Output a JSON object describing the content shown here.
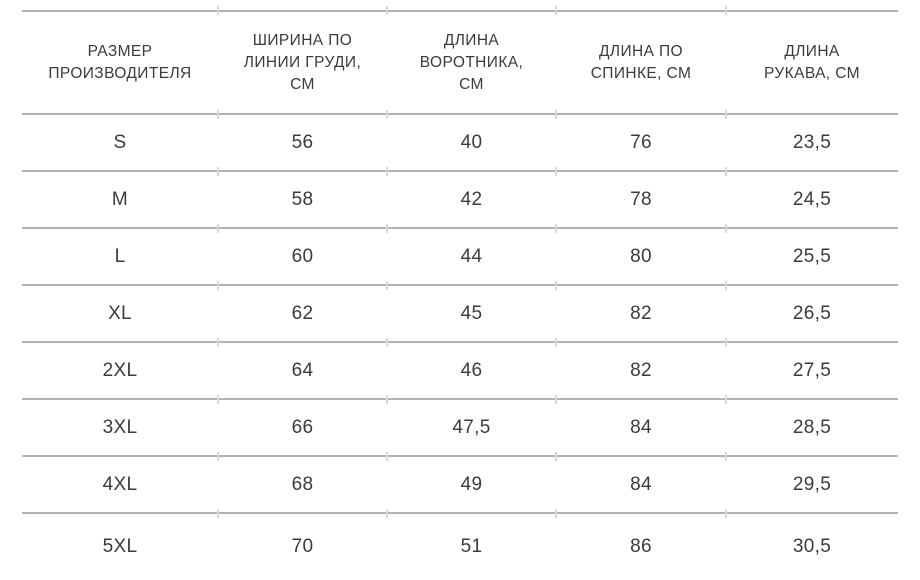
{
  "chart_data": {
    "type": "table",
    "title": "",
    "columns": [
      "РАЗМЕР ПРОИЗВОДИТЕЛЯ",
      "ШИРИНА ПО ЛИНИИ ГРУДИ, СМ",
      "ДЛИНА ВОРОТНИКА, СМ",
      "ДЛИНА ПО СПИНКЕ, СМ",
      "ДЛИНА РУКАВА, СМ"
    ],
    "rows": [
      [
        "S",
        "56",
        "40",
        "76",
        "23,5"
      ],
      [
        "M",
        "58",
        "42",
        "78",
        "24,5"
      ],
      [
        "L",
        "60",
        "44",
        "80",
        "25,5"
      ],
      [
        "XL",
        "62",
        "45",
        "82",
        "26,5"
      ],
      [
        "2XL",
        "64",
        "46",
        "82",
        "27,5"
      ],
      [
        "3XL",
        "66",
        "47,5",
        "84",
        "28,5"
      ],
      [
        "4XL",
        "68",
        "49",
        "84",
        "29,5"
      ],
      [
        "5XL",
        "70",
        "51",
        "86",
        "30,5"
      ]
    ]
  },
  "styles": {
    "rule_color": "#b3b3b3",
    "notch_color": "#d9d9d9",
    "text_color": "#3b3b3b",
    "background_color": "#ffffff"
  }
}
